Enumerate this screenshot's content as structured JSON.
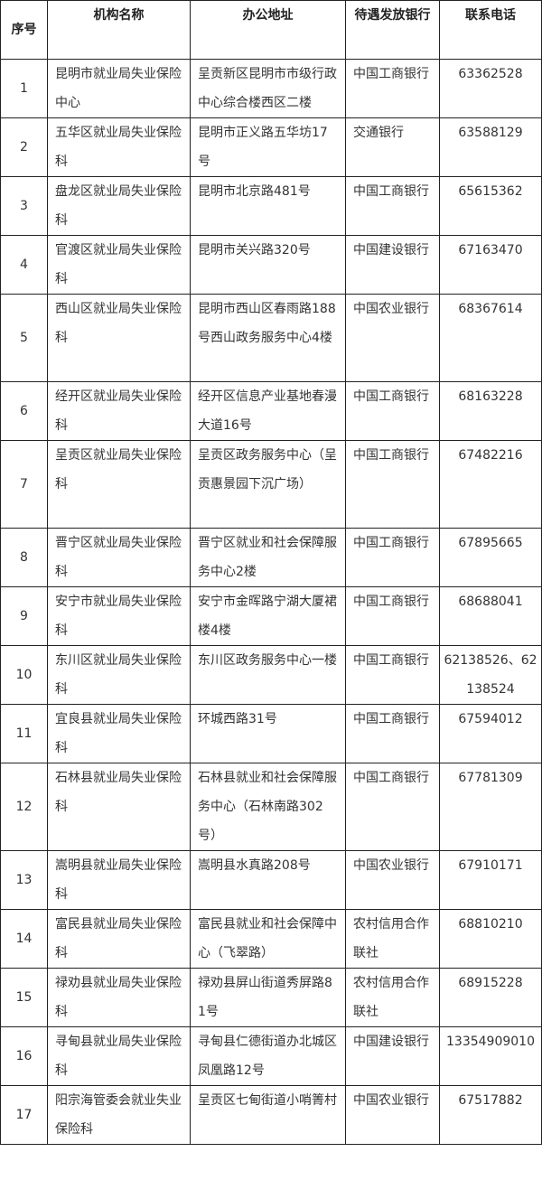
{
  "header": {
    "index": "序号",
    "name": "机构名称",
    "address": "办公地址",
    "bank": "待遇发放银行",
    "phone": "联系电话"
  },
  "rows": [
    {
      "index": "1",
      "name": "昆明市就业局失业保险中心",
      "address": "呈贡新区昆明市市级行政中心综合楼西区二楼",
      "bank": "中国工商银行",
      "phone": "63362528"
    },
    {
      "index": "2",
      "name": "五华区就业局失业保险科",
      "address": "昆明市正义路五华坊17号",
      "bank": "交通银行",
      "phone": "63588129"
    },
    {
      "index": "3",
      "name": "盘龙区就业局失业保险科",
      "address": "昆明市北京路481号",
      "bank": "中国工商银行",
      "phone": "65615362"
    },
    {
      "index": "4",
      "name": "官渡区就业局失业保险科",
      "address": "昆明市关兴路320号",
      "bank": "中国建设银行",
      "phone": "67163470"
    },
    {
      "index": "5",
      "name": "西山区就业局失业保险科",
      "address": "昆明市西山区春雨路188号西山政务服务中心4楼",
      "bank": "中国农业银行",
      "phone": "68367614"
    },
    {
      "index": "6",
      "name": "经开区就业局失业保险科",
      "address": "经开区信息产业基地春漫大道16号",
      "bank": "中国工商银行",
      "phone": "68163228"
    },
    {
      "index": "7",
      "name": "呈贡区就业局失业保险科",
      "address": "呈贡区政务服务中心（呈贡惠景园下沉广场）",
      "bank": "中国工商银行",
      "phone": "67482216"
    },
    {
      "index": "8",
      "name": "晋宁区就业局失业保险科",
      "address": "晋宁区就业和社会保障服务中心2楼",
      "bank": "中国工商银行",
      "phone": "67895665"
    },
    {
      "index": "9",
      "name": "安宁市就业局失业保险科",
      "address": "安宁市金晖路宁湖大厦裙楼4楼",
      "bank": "中国工商银行",
      "phone": "68688041"
    },
    {
      "index": "10",
      "name": "东川区就业局失业保险科",
      "address": "东川区政务服务中心一楼",
      "bank": "中国工商银行",
      "phone": "62138526、62138524"
    },
    {
      "index": "11",
      "name": "宜良县就业局失业保险科",
      "address": "环城西路31号",
      "bank": "中国工商银行",
      "phone": "67594012"
    },
    {
      "index": "12",
      "name": "石林县就业局失业保险科",
      "address": "石林县就业和社会保障服务中心（石林南路302号）",
      "bank": "中国工商银行",
      "phone": "67781309"
    },
    {
      "index": "13",
      "name": "嵩明县就业局失业保险科",
      "address": "嵩明县水真路208号",
      "bank": "中国农业银行",
      "phone": "67910171"
    },
    {
      "index": "14",
      "name": "富民县就业局失业保险科",
      "address": "富民县就业和社会保障中心（飞翠路）",
      "bank": "农村信用合作联社",
      "phone": "68810210"
    },
    {
      "index": "15",
      "name": "禄劝县就业局失业保险科",
      "address": "禄劝县屏山街道秀屏路81号",
      "bank": "农村信用合作联社",
      "phone": "68915228"
    },
    {
      "index": "16",
      "name": "寻甸县就业局失业保险科",
      "address": "寻甸县仁德街道办北城区凤凰路12号",
      "bank": "中国建设银行",
      "phone": "13354909010"
    },
    {
      "index": "17",
      "name": "阳宗海管委会就业失业保险科",
      "address": "呈贡区七甸街道小哨箐村",
      "bank": "中国农业银行",
      "phone": "67517882"
    }
  ]
}
